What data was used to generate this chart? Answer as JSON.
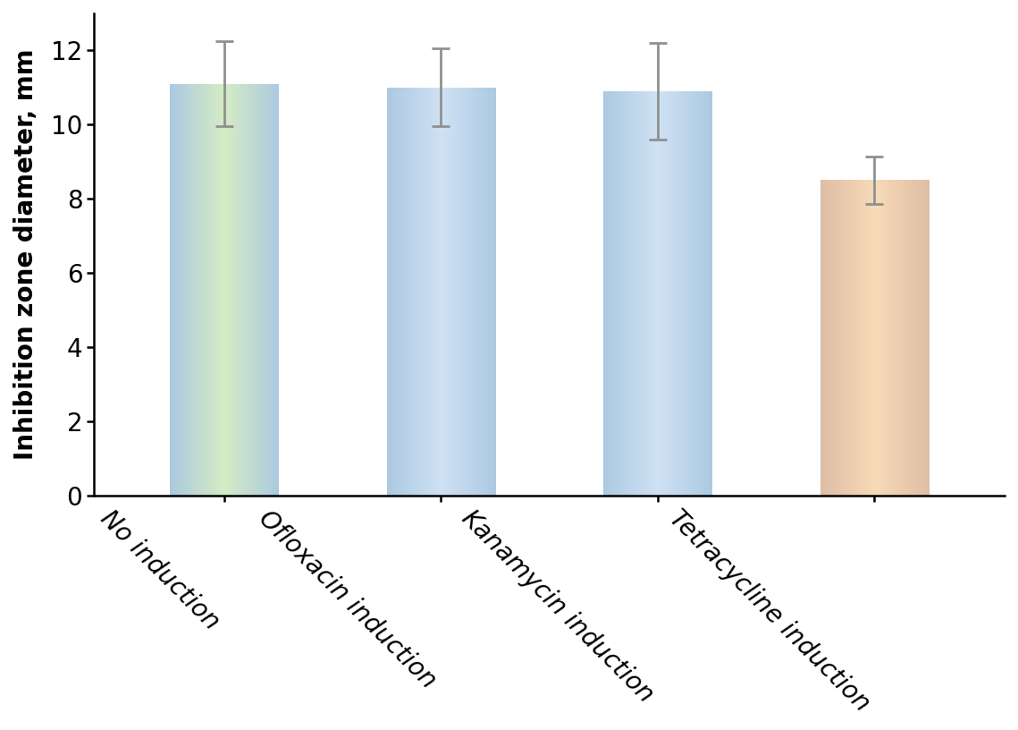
{
  "categories": [
    "No induction",
    "Ofloxacin induction",
    "Kanamycin induction",
    "Tetracycline induction"
  ],
  "values": [
    11.1,
    11.0,
    10.9,
    8.5
  ],
  "errors": [
    1.15,
    1.05,
    1.3,
    0.65
  ],
  "bar_colors_center": [
    "#c8e6b0",
    "#c0d8f0",
    "#c0d8f0",
    "#f5cfa0"
  ],
  "bar_colors_edge": [
    "#90b8d8",
    "#90b8d8",
    "#90b8d8",
    "#d4a888"
  ],
  "ylabel": "Inhibition zone diameter, mm",
  "ylim": [
    0,
    13
  ],
  "yticks": [
    0,
    2,
    4,
    6,
    8,
    10,
    12
  ],
  "error_color": "#909090",
  "tick_label_fontsize": 20,
  "ylabel_fontsize": 20,
  "bar_width": 0.5,
  "background_color": "#ffffff",
  "label_rotation": -45
}
